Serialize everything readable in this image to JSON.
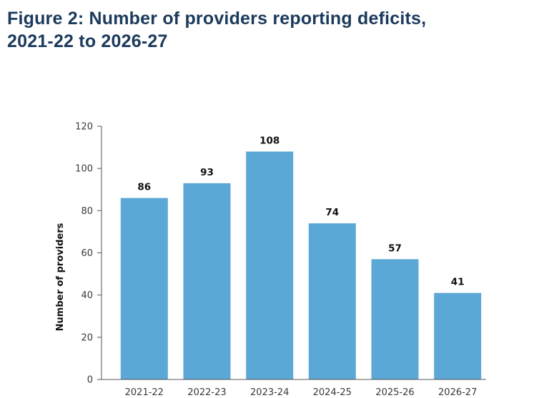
{
  "figure": {
    "title_line1": "Figure 2: Number of providers reporting deficits,",
    "title_line2": "2021-22 to 2026-27"
  },
  "chart_data": {
    "type": "bar",
    "title": "Figure 2: Number of providers reporting deficits, 2021-22 to 2026-27",
    "categories": [
      "2021-22",
      "2022-23",
      "2023-24",
      "2024-25",
      "2025-26",
      "2026-27"
    ],
    "values": [
      86,
      93,
      108,
      74,
      57,
      41
    ],
    "data_labels": [
      "86",
      "93",
      "108",
      "74",
      "57",
      "41"
    ],
    "xlabel": "",
    "ylabel": "Number of providers",
    "ylim": [
      0,
      120
    ],
    "yticks": [
      0,
      20,
      40,
      60,
      80,
      100,
      120
    ],
    "ytick_labels": [
      "0",
      "20",
      "40",
      "60",
      "80",
      "100",
      "120"
    ],
    "grid": false,
    "legend": "none",
    "bar_color": "#5ba7d6",
    "axis_color": "#555555"
  }
}
